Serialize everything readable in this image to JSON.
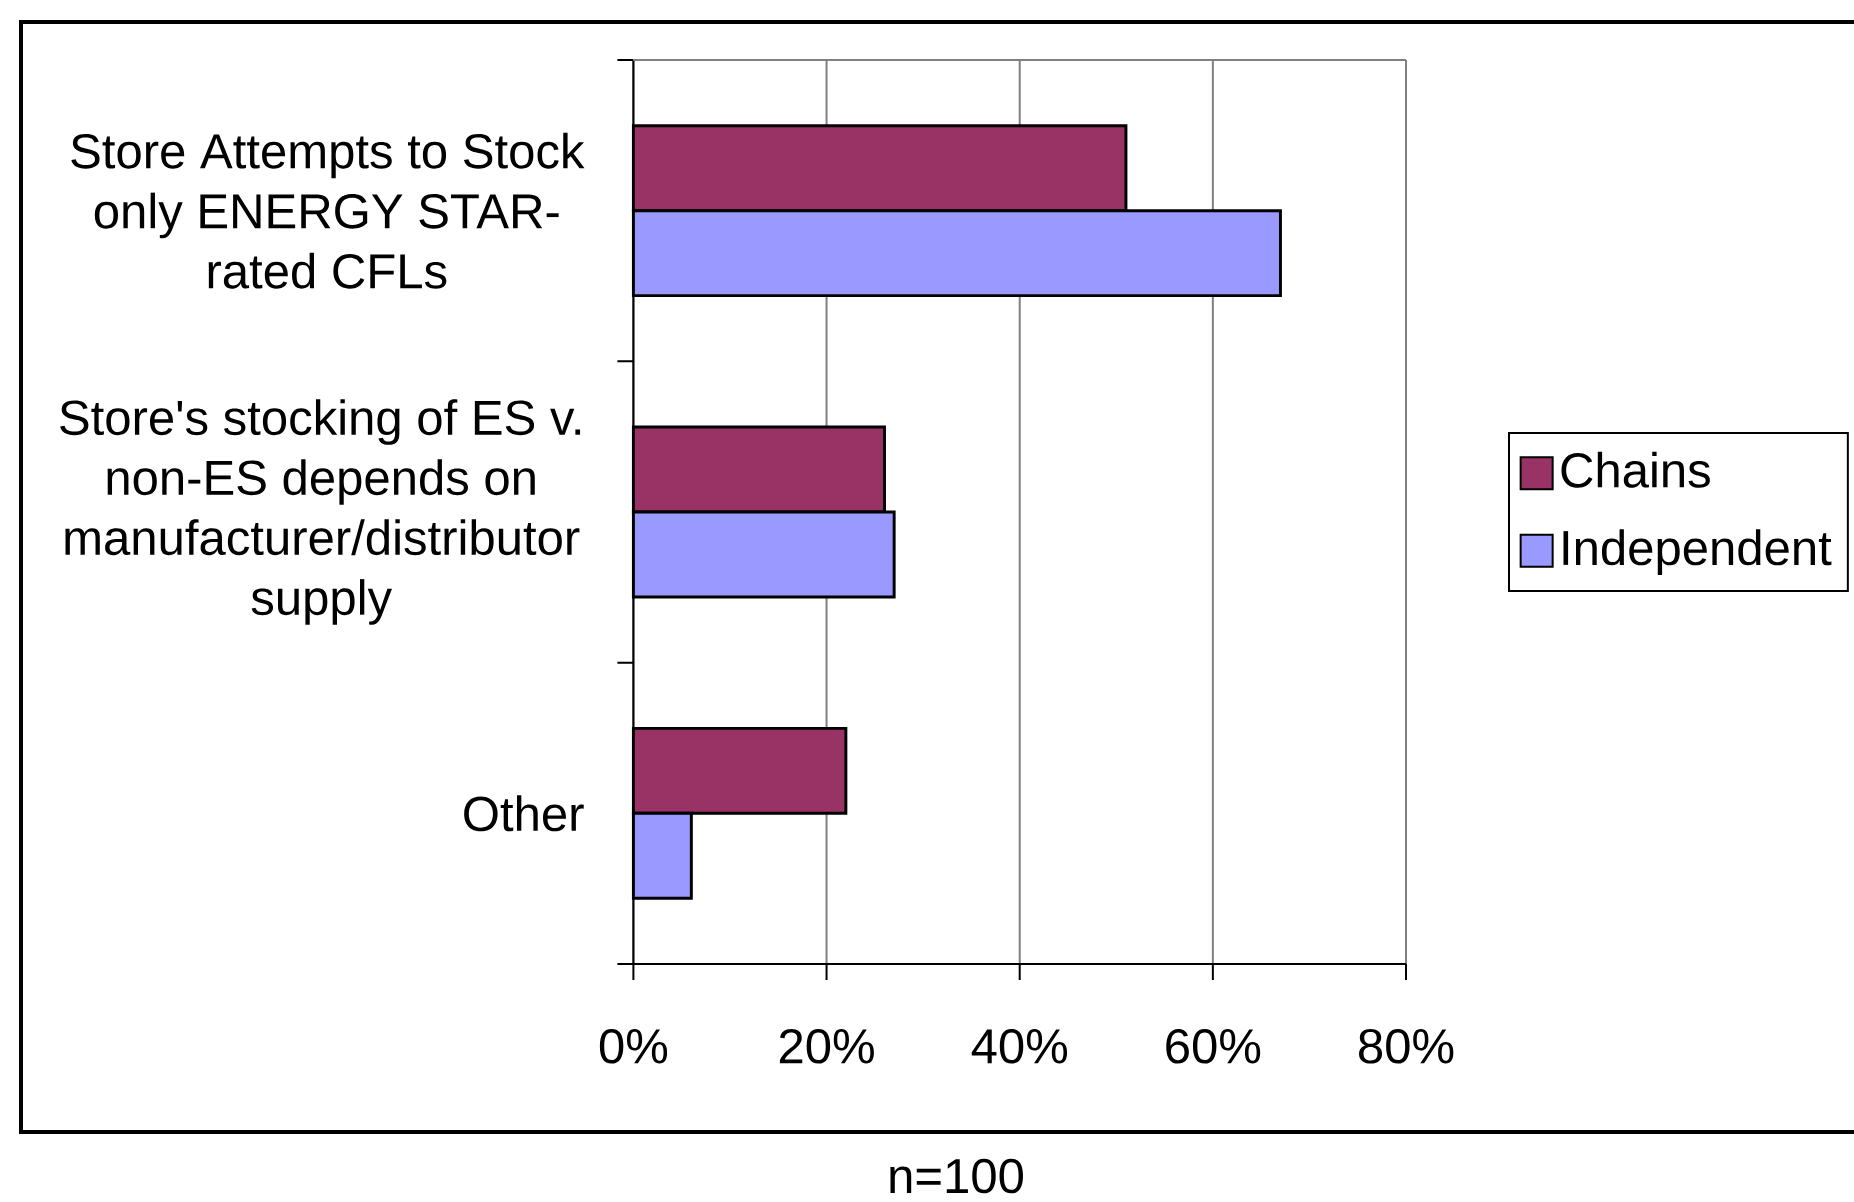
{
  "chart_data": {
    "type": "bar",
    "orientation": "horizontal",
    "categories": [
      "Store Attempts to Stock only ENERGY STAR-rated CFLs",
      "Store's stocking of ES v. non-ES depends on manufacturer/distributor supply",
      "Other"
    ],
    "series": [
      {
        "name": "Chains",
        "color": "#993366",
        "values": [
          51,
          26,
          22
        ]
      },
      {
        "name": "Independent",
        "color": "#9999ff",
        "values": [
          67,
          27,
          6
        ]
      }
    ],
    "xlim": [
      0,
      80
    ],
    "xticks": [
      {
        "value": 0,
        "label": "0%"
      },
      {
        "value": 20,
        "label": "20%"
      },
      {
        "value": 40,
        "label": "40%"
      },
      {
        "value": 60,
        "label": "60%"
      },
      {
        "value": 80,
        "label": "80%"
      }
    ],
    "grid": "x",
    "legend": "right",
    "annotations": [
      "n=100"
    ]
  }
}
